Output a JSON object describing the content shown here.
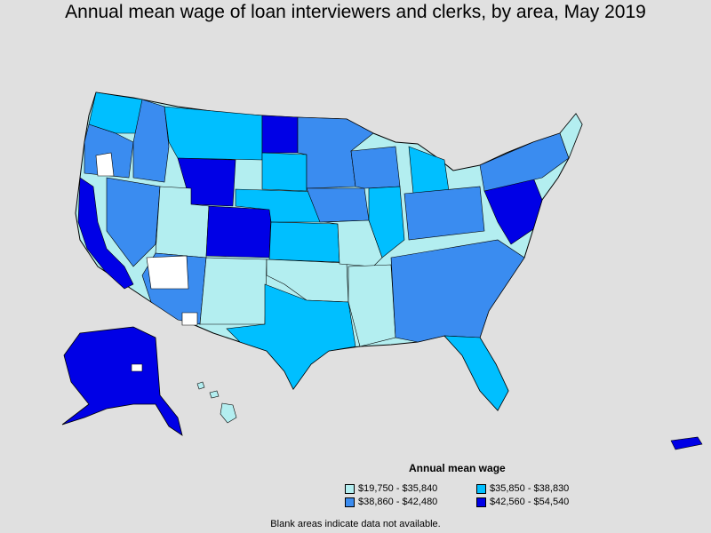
{
  "title": "Annual mean wage of loan interviewers and clerks, by area, May 2019",
  "legend": {
    "title": "Annual mean wage",
    "items": [
      {
        "label": "$19,750 - $35,840",
        "color": "#b3eef0"
      },
      {
        "label": "$35,850 - $38,830",
        "color": "#00bfff"
      },
      {
        "label": "$38,860 - $42,480",
        "color": "#3a8cf0"
      },
      {
        "label": "$42,560 - $54,540",
        "color": "#0000e6"
      }
    ]
  },
  "note": "Blank areas indicate data not available.",
  "colors": {
    "background": "#e0e0e0",
    "border": "#000000",
    "no_data": "#ffffff"
  }
}
